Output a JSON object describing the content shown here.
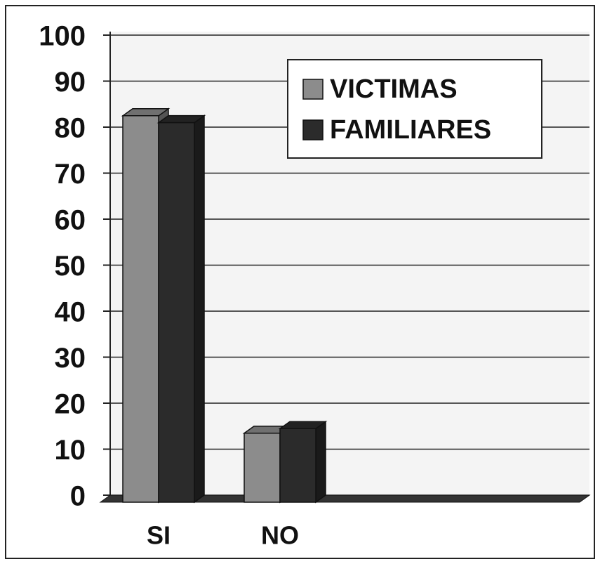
{
  "chart_data": {
    "type": "bar3d",
    "categories": [
      "SI",
      "NO"
    ],
    "series": [
      {
        "name": "VICTIMAS",
        "color": "#8c8c8c",
        "values": [
          84,
          15
        ]
      },
      {
        "name": "FAMILIARES",
        "color": "#2b2b2b",
        "values": [
          82.5,
          16
        ]
      }
    ],
    "ylim": [
      0,
      100
    ],
    "yticks": [
      0,
      10,
      20,
      30,
      40,
      50,
      60,
      70,
      80,
      90,
      100
    ],
    "grid": true,
    "legend": "top-right"
  }
}
